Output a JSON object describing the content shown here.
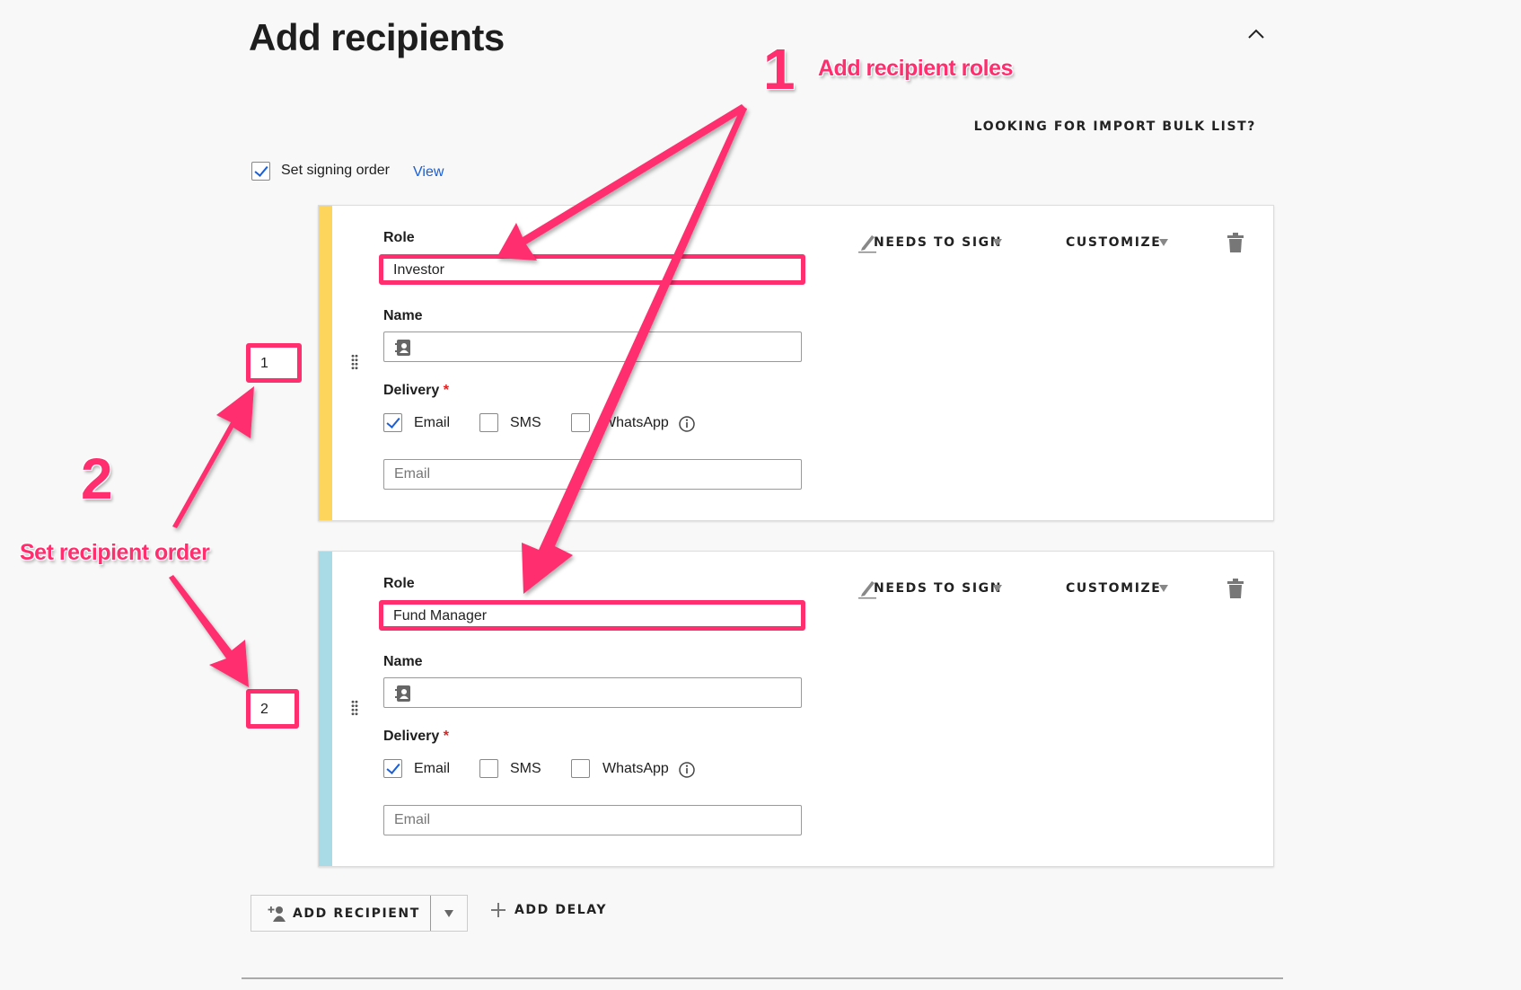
{
  "header": {
    "title": "Add recipients",
    "import_link": "LOOKING FOR IMPORT BULK LIST?",
    "collapse_icon": "chevron-up-icon"
  },
  "signing_order": {
    "label": "Set signing order",
    "checked": true,
    "view_link": "View"
  },
  "recipients": [
    {
      "order": "1",
      "color": "#fdd55c",
      "role_label": "Role",
      "role": "Investor",
      "name_label": "Name",
      "name": "",
      "delivery_label": "Delivery",
      "required_mark": "*",
      "options": [
        {
          "label": "Email",
          "checked": true
        },
        {
          "label": "SMS",
          "checked": false
        },
        {
          "label": "WhatsApp",
          "checked": false
        }
      ],
      "email_placeholder": "Email",
      "action": "NEEDS TO SIGN",
      "customize": "CUSTOMIZE"
    },
    {
      "order": "2",
      "color": "#a9dbe6",
      "role_label": "Role",
      "role": "Fund Manager",
      "name_label": "Name",
      "name": "",
      "delivery_label": "Delivery",
      "required_mark": "*",
      "options": [
        {
          "label": "Email",
          "checked": true
        },
        {
          "label": "SMS",
          "checked": false
        },
        {
          "label": "WhatsApp",
          "checked": false
        }
      ],
      "email_placeholder": "Email",
      "action": "NEEDS TO SIGN",
      "customize": "CUSTOMIZE"
    }
  ],
  "footer": {
    "add_recipient": "ADD RECIPIENT",
    "add_delay": "ADD DELAY"
  },
  "annotations": {
    "step1_number": "1",
    "step1_text": "Add recipient roles",
    "step2_number": "2",
    "step2_text": "Set recipient order",
    "color": "#ff2e6e"
  }
}
